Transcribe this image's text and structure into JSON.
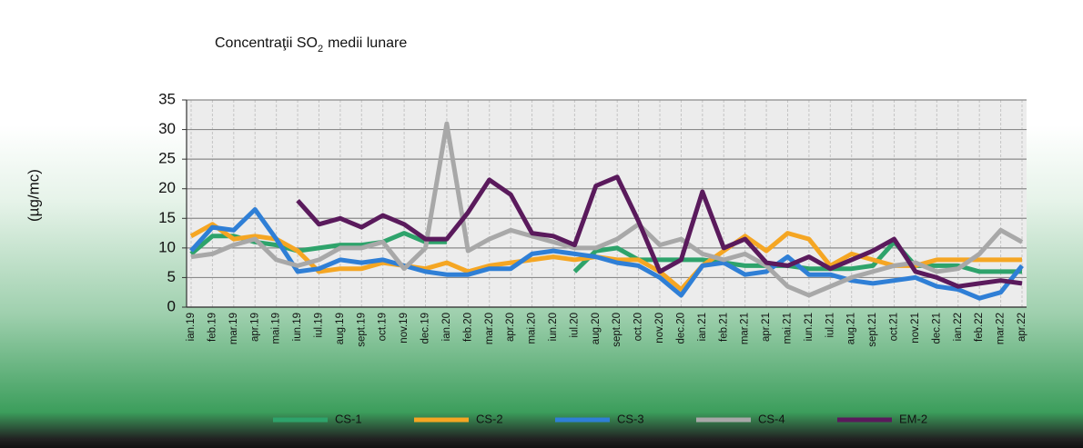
{
  "chart_data": {
    "type": "line",
    "title": "Concentraţii SO",
    "title_subscript": "2",
    "title_suffix": "medii lunare",
    "y_label": "(µg/mc)",
    "categories": [
      "ian.19",
      "feb.19",
      "mar.19",
      "apr.19",
      "mai.19",
      "iun.19",
      "iul.19",
      "aug.19",
      "sept.19",
      "oct.19",
      "nov.19",
      "dec.19",
      "ian.20",
      "feb.20",
      "mar.20",
      "apr.20",
      "mai.20",
      "iun.20",
      "iul.20",
      "aug.20",
      "sept.20",
      "oct.20",
      "nov.20",
      "dec.20",
      "ian.21",
      "feb.21",
      "mar.21",
      "apr.21",
      "mai.21",
      "iun.21",
      "iul.21",
      "aug.21",
      "sept.21",
      "oct.21",
      "nov.21",
      "dec.21",
      "ian.22",
      "feb.22",
      "mar.22",
      "apr.22"
    ],
    "series": [
      {
        "name": "CS-1",
        "color": "#2ea36b",
        "values": [
          9,
          12,
          12,
          11,
          10.5,
          9.5,
          10,
          10.5,
          10.5,
          11,
          12.5,
          11,
          11,
          null,
          null,
          null,
          null,
          null,
          6,
          9.5,
          10,
          8,
          8,
          8,
          8,
          7.5,
          7,
          7,
          7,
          6.5,
          6.5,
          6.5,
          7,
          11,
          7,
          7,
          7,
          6,
          6,
          6
        ]
      },
      {
        "name": "CS-2",
        "color": "#f5a623",
        "values": [
          12,
          14,
          11.5,
          12,
          11.5,
          9.5,
          6,
          6.5,
          6.5,
          7.5,
          7,
          6.5,
          7.5,
          6,
          7,
          7.5,
          8,
          8.5,
          8,
          8.5,
          8,
          8,
          6,
          3,
          7,
          9.5,
          12,
          9.5,
          12.5,
          11.5,
          7,
          9,
          8,
          7,
          7,
          8,
          8,
          8,
          8,
          8
        ]
      },
      {
        "name": "CS-3",
        "color": "#2f7fd6",
        "values": [
          9.5,
          13.5,
          13,
          16.5,
          11.5,
          6,
          6.5,
          8,
          7.5,
          8,
          7,
          6,
          5.5,
          5.5,
          6.5,
          6.5,
          9,
          9.5,
          9,
          8.5,
          7.5,
          7,
          5,
          2,
          7,
          7.5,
          5.5,
          6,
          8.5,
          5.5,
          5.5,
          4.5,
          4,
          4.5,
          5,
          3.5,
          3,
          1.5,
          2.5,
          7
        ]
      },
      {
        "name": "CS-4",
        "color": "#a8a8a8",
        "values": [
          8.5,
          9,
          10.5,
          11.5,
          8,
          7,
          8,
          10,
          10,
          11,
          6.5,
          10,
          31,
          9.5,
          11.5,
          13,
          12,
          11,
          10,
          10,
          11.5,
          14,
          10.5,
          11.5,
          9,
          8,
          9,
          7,
          3.5,
          2,
          3.5,
          5,
          6,
          7,
          7.5,
          6,
          6.5,
          9,
          13,
          11
        ]
      },
      {
        "name": "EM-2",
        "color": "#5a1a5c",
        "values": [
          null,
          null,
          null,
          null,
          null,
          18,
          14,
          15,
          13.5,
          15.5,
          14,
          11.5,
          11.5,
          16,
          21.5,
          19,
          12.5,
          12,
          10.5,
          20.5,
          22,
          14.5,
          6,
          8,
          19.5,
          10,
          11.5,
          7.5,
          7,
          8.5,
          6.5,
          8,
          9.5,
          11.5,
          6,
          5,
          3.5,
          4,
          4.5,
          4
        ]
      }
    ],
    "ylim": [
      0,
      35
    ],
    "yticks": [
      0,
      5,
      10,
      15,
      20,
      25,
      30,
      35
    ],
    "grid": true,
    "legend": "bottom"
  }
}
